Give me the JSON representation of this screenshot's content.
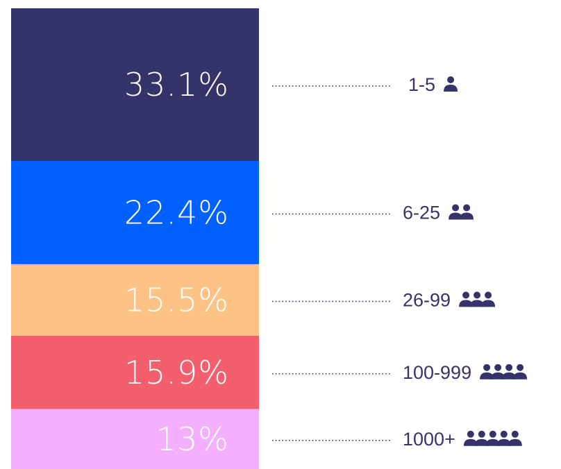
{
  "chart_data": {
    "type": "stacked-bar",
    "categories": [
      "1-5",
      "6-25",
      "26-99",
      "100-999",
      "1000+"
    ],
    "values": [
      33.1,
      22.4,
      15.5,
      15.9,
      13
    ],
    "value_labels": [
      "33.1%",
      "22.4%",
      "15.5%",
      "15.9%",
      "13%"
    ],
    "colors": [
      "#35346a",
      "#0061fe",
      "#fdc285",
      "#f45f6e",
      "#f4b0fe"
    ]
  }
}
